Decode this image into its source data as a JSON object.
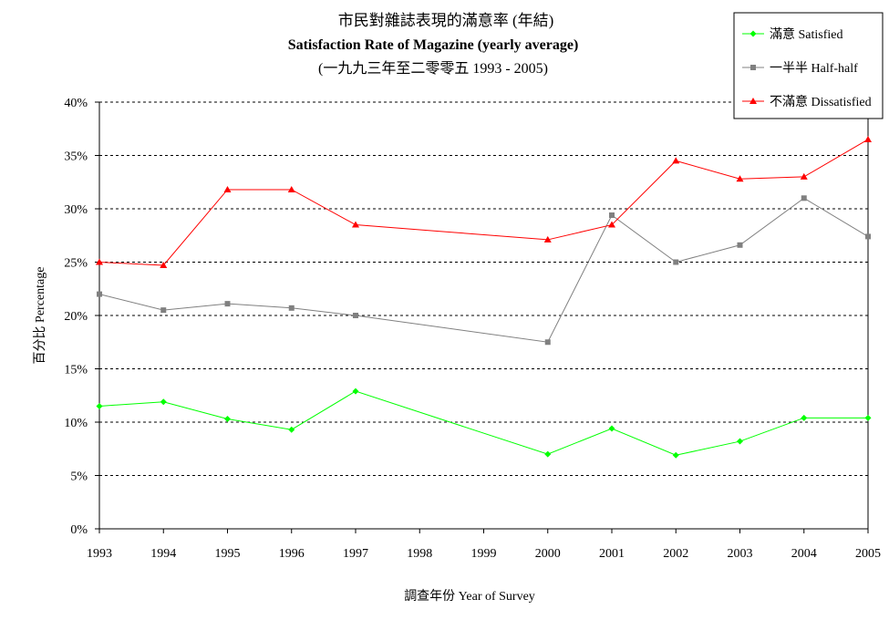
{
  "colors": {
    "satisfied": "#00ff00",
    "half": "#808080",
    "dissatisfied": "#ff0000"
  },
  "chart_data": {
    "type": "line",
    "title": "市民對雜誌表現的滿意率 (年結)",
    "subtitle": "Satisfaction Rate of Magazine (yearly average)",
    "subtitle2": "(一九九三年至二零零五 1993 - 2005)",
    "xlabel": "調查年份 Year of Survey",
    "ylabel": "百分比 Percentage",
    "x": [
      1993,
      1994,
      1995,
      1996,
      1997,
      1998,
      1999,
      2000,
      2001,
      2002,
      2003,
      2004,
      2005
    ],
    "x_tick_labels": [
      "1993",
      "1994",
      "1995",
      "1996",
      "1997",
      "1998",
      "1999",
      "2000",
      "2001",
      "2002",
      "2003",
      "2004",
      "2005"
    ],
    "y_tick_labels": [
      "0%",
      "5%",
      "10%",
      "15%",
      "20%",
      "25%",
      "30%",
      "35%",
      "40%"
    ],
    "ylim": [
      0,
      40
    ],
    "y_unit": "%",
    "grid": "horizontal dashed",
    "legend": "top-right",
    "series": [
      {
        "name": "滿意 Satisfied",
        "key": "satisfied",
        "marker": "diamond",
        "values": [
          11.5,
          11.9,
          10.3,
          9.3,
          12.9,
          null,
          null,
          7.0,
          9.4,
          6.9,
          8.2,
          10.4,
          10.4
        ]
      },
      {
        "name": "一半半 Half-half",
        "key": "half",
        "marker": "square",
        "values": [
          22.0,
          20.5,
          21.1,
          20.7,
          20.0,
          null,
          null,
          17.5,
          29.4,
          25.0,
          26.6,
          31.0,
          27.4
        ]
      },
      {
        "name": "不滿意 Dissatisfied",
        "key": "dissatisfied",
        "marker": "triangle",
        "values": [
          25.0,
          24.7,
          31.8,
          31.8,
          28.5,
          null,
          null,
          27.1,
          28.5,
          34.5,
          32.8,
          33.0,
          36.5
        ]
      }
    ]
  }
}
